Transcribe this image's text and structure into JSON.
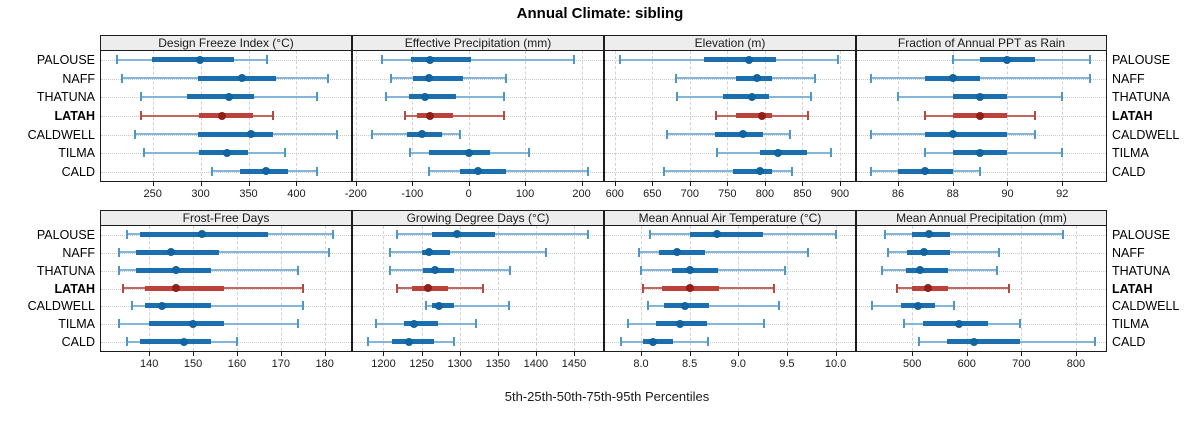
{
  "title": "Annual Climate: sibling",
  "footer_label": "5th-25th-50th-75th-95th Percentiles",
  "sites": [
    "PALOUSE",
    "NAFF",
    "THATUNA",
    "LATAH",
    "CALDWELL",
    "TILMA",
    "CALD"
  ],
  "highlight_site": "LATAH",
  "percentile_keys": [
    "p5",
    "p25",
    "p50",
    "p75",
    "p95"
  ],
  "colors": {
    "blue_whisker": "#85b6d9",
    "blue_cap": "#4f97c7",
    "blue_band": "#1b6fae",
    "blue_dot": "#10649f",
    "red_whisker": "#c2665f",
    "red_cap": "#b34a42",
    "red_band": "#bb423a",
    "red_dot": "#8f1f17",
    "grid": "#c9c9c9",
    "panel_border": "#1c1c1c",
    "header_bg": "#ededed",
    "text": "#111111"
  },
  "chart_data": {
    "type": "dotplot-percentile-panels",
    "note": "values per site are [5th, 25th, 50th, 75th, 95th] percentiles",
    "panels": [
      {
        "key": "design-freeze-index",
        "title": "Design Freeze Index (°C)",
        "xlim": [
          196,
          457
        ],
        "tick_values": [
          250,
          300,
          350,
          400
        ],
        "tick_labels": [
          "250",
          "300",
          "350",
          "400"
        ],
        "series": {
          "PALOUSE": [
            213,
            249,
            299,
            335,
            369
          ],
          "NAFF": [
            218,
            297,
            343,
            379,
            433
          ],
          "THATUNA": [
            238,
            286,
            330,
            356,
            421
          ],
          "LATAH": [
            238,
            298,
            322,
            355,
            376
          ],
          "CALDWELL": [
            231,
            297,
            353,
            376,
            442
          ],
          "TILMA": [
            241,
            298,
            328,
            350,
            388
          ],
          "CALD": [
            312,
            341,
            368,
            391,
            421
          ]
        }
      },
      {
        "key": "effective-precipitation",
        "title": "Effective Precipitation (mm)",
        "xlim": [
          -205,
          238
        ],
        "tick_values": [
          -200,
          -100,
          0,
          100,
          200
        ],
        "tick_labels": [
          "-200",
          "-100",
          "0",
          "100",
          "200"
        ],
        "series": {
          "PALOUSE": [
            -153,
            -103,
            -68,
            4,
            186
          ],
          "NAFF": [
            -137,
            -99,
            -71,
            -10,
            66
          ],
          "THATUNA": [
            -146,
            -106,
            -78,
            -22,
            63
          ],
          "LATAH": [
            -113,
            -92,
            -68,
            -28,
            63
          ],
          "CALDWELL": [
            -172,
            -110,
            -83,
            -48,
            -16
          ],
          "TILMA": [
            -104,
            -70,
            0,
            38,
            107
          ],
          "CALD": [
            -70,
            -16,
            16,
            66,
            212
          ]
        }
      },
      {
        "key": "elevation",
        "title": "Elevation (m)",
        "xlim": [
          587,
          920
        ],
        "tick_values": [
          600,
          650,
          700,
          750,
          800,
          850,
          900
        ],
        "tick_labels": [
          "600",
          "650",
          "700",
          "750",
          "800",
          "850",
          "900"
        ],
        "series": {
          "PALOUSE": [
            607,
            719,
            779,
            815,
            898
          ],
          "NAFF": [
            682,
            762,
            789,
            809,
            867
          ],
          "THATUNA": [
            683,
            744,
            783,
            805,
            862
          ],
          "LATAH": [
            735,
            761,
            796,
            810,
            857
          ],
          "CALDWELL": [
            670,
            734,
            771,
            797,
            834
          ],
          "TILMA": [
            736,
            793,
            818,
            856,
            888
          ],
          "CALD": [
            665,
            758,
            793,
            810,
            836
          ]
        }
      },
      {
        "key": "fraction-ppt-rain",
        "title": "Fraction of Annual PPT as Rain",
        "xlim": [
          84.5,
          93.6
        ],
        "tick_values": [
          86,
          88,
          90,
          92
        ],
        "tick_labels": [
          "86",
          "88",
          "90",
          "92"
        ],
        "series": {
          "PALOUSE": [
            88,
            89,
            90,
            91,
            93
          ],
          "NAFF": [
            85,
            87,
            88,
            89,
            93
          ],
          "THATUNA": [
            86,
            88,
            89,
            90,
            92
          ],
          "LATAH": [
            87,
            88,
            89,
            90,
            91
          ],
          "CALDWELL": [
            85,
            87,
            88,
            90,
            91
          ],
          "TILMA": [
            87,
            88,
            89,
            90,
            92
          ],
          "CALD": [
            85,
            86,
            87,
            88,
            89
          ]
        }
      },
      {
        "key": "frost-free-days",
        "title": "Frost-Free Days",
        "xlim": [
          129,
          186
        ],
        "tick_values": [
          140,
          150,
          160,
          170,
          180
        ],
        "tick_labels": [
          "140",
          "150",
          "160",
          "170",
          "180"
        ],
        "series": {
          "PALOUSE": [
            135,
            138,
            152,
            167,
            182
          ],
          "NAFF": [
            133,
            137,
            145,
            156,
            181
          ],
          "THATUNA": [
            133,
            137,
            146,
            154,
            174
          ],
          "LATAH": [
            134,
            139,
            146,
            157,
            175
          ],
          "CALDWELL": [
            136,
            139,
            143,
            154,
            175
          ],
          "TILMA": [
            133,
            140,
            150,
            157,
            174
          ],
          "CALD": [
            135,
            138,
            148,
            154,
            160
          ]
        }
      },
      {
        "key": "growing-degree-days",
        "title": "Growing Degree Days (°C)",
        "xlim": [
          1160,
          1488
        ],
        "tick_values": [
          1200,
          1250,
          1300,
          1350,
          1400,
          1450
        ],
        "tick_labels": [
          "1200",
          "1250",
          "1300",
          "1350",
          "1400",
          "1450"
        ],
        "series": {
          "PALOUSE": [
            1218,
            1264,
            1297,
            1346,
            1468
          ],
          "NAFF": [
            1208,
            1250,
            1260,
            1287,
            1413
          ],
          "THATUNA": [
            1209,
            1252,
            1267,
            1292,
            1366
          ],
          "LATAH": [
            1218,
            1237,
            1259,
            1285,
            1331
          ],
          "CALDWELL": [
            1256,
            1263,
            1273,
            1292,
            1365
          ],
          "TILMA": [
            1190,
            1227,
            1240,
            1272,
            1322
          ],
          "CALD": [
            1180,
            1211,
            1234,
            1266,
            1293
          ]
        }
      },
      {
        "key": "mean-annual-air-temperature",
        "title": "Mean Annual Air Temperature (°C)",
        "xlim": [
          7.63,
          10.2
        ],
        "tick_values": [
          8.0,
          8.5,
          9.0,
          9.5,
          10.0
        ],
        "tick_labels": [
          "8.0",
          "8.5",
          "9.0",
          "9.5",
          "10.0"
        ],
        "series": {
          "PALOUSE": [
            8.09,
            8.5,
            8.78,
            9.25,
            10.0
          ],
          "NAFF": [
            7.98,
            8.19,
            8.37,
            8.66,
            9.72
          ],
          "THATUNA": [
            8.0,
            8.32,
            8.5,
            8.79,
            9.48
          ],
          "LATAH": [
            8.02,
            8.22,
            8.5,
            8.8,
            9.37
          ],
          "CALDWELL": [
            8.07,
            8.24,
            8.45,
            8.7,
            9.42
          ],
          "TILMA": [
            7.87,
            8.15,
            8.4,
            8.68,
            9.26
          ],
          "CALD": [
            7.79,
            8.02,
            8.12,
            8.33,
            8.69
          ]
        }
      },
      {
        "key": "mean-annual-precipitation",
        "title": "Mean Annual Precipitation (mm)",
        "xlim": [
          399,
          855
        ],
        "tick_values": [
          500,
          600,
          700,
          800
        ],
        "tick_labels": [
          "500",
          "600",
          "700",
          "800"
        ],
        "series": {
          "PALOUSE": [
            451,
            500,
            530,
            570,
            776
          ],
          "NAFF": [
            456,
            490,
            522,
            570,
            659
          ],
          "THATUNA": [
            445,
            488,
            515,
            566,
            655
          ],
          "LATAH": [
            472,
            500,
            529,
            566,
            677
          ],
          "CALDWELL": [
            426,
            479,
            511,
            541,
            576
          ],
          "TILMA": [
            485,
            520,
            586,
            639,
            698
          ],
          "CALD": [
            512,
            564,
            614,
            698,
            835
          ]
        }
      }
    ]
  }
}
